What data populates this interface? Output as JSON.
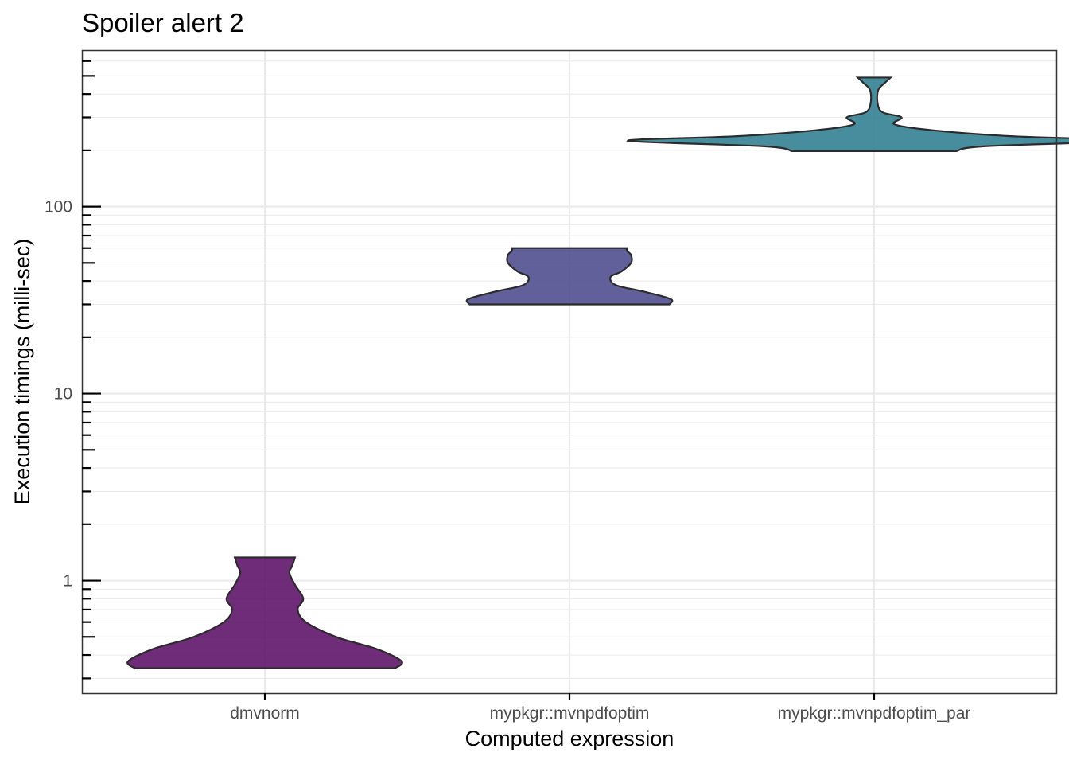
{
  "chart_data": {
    "type": "violin",
    "title": "Spoiler alert 2",
    "xlabel": "Computed expression",
    "ylabel": "Execution timings (milli-sec)",
    "y_scale": "log10",
    "ylim": [
      0.25,
      680
    ],
    "y_major_ticks": [
      1,
      10,
      100
    ],
    "y_tick_labels": [
      "1",
      "10",
      "100"
    ],
    "grid": true,
    "categories": [
      "dmvnorm",
      "mypkgr::mvnpdfoptim",
      "mypkgr::mvnpdfoptim_par"
    ],
    "series": [
      {
        "category": "dmvnorm",
        "color": "#5b0f66",
        "min": 0.34,
        "max": 1.33,
        "profile": [
          [
            0.34,
            0.95
          ],
          [
            0.37,
            1.0
          ],
          [
            0.43,
            0.82
          ],
          [
            0.5,
            0.52
          ],
          [
            0.6,
            0.3
          ],
          [
            0.7,
            0.24
          ],
          [
            0.8,
            0.28
          ],
          [
            0.95,
            0.22
          ],
          [
            1.1,
            0.18
          ],
          [
            1.2,
            0.2
          ],
          [
            1.33,
            0.22
          ]
        ]
      },
      {
        "category": "mypkgr::mvnpdfoptim",
        "color": "#4b4a8c",
        "min": 30,
        "max": 60,
        "profile": [
          [
            30,
            0.73
          ],
          [
            32,
            0.74
          ],
          [
            35,
            0.55
          ],
          [
            38,
            0.34
          ],
          [
            42,
            0.3
          ],
          [
            45,
            0.38
          ],
          [
            50,
            0.45
          ],
          [
            55,
            0.45
          ],
          [
            58,
            0.42
          ],
          [
            60,
            0.42
          ]
        ]
      },
      {
        "category": "mypkgr::mvnpdfoptim_par",
        "color": "#2e7d91",
        "min": 198,
        "max": 490,
        "profile": [
          [
            198,
            0.6
          ],
          [
            210,
            0.8
          ],
          [
            225,
            1.8
          ],
          [
            238,
            1.0
          ],
          [
            255,
            0.45
          ],
          [
            275,
            0.15
          ],
          [
            300,
            0.2
          ],
          [
            320,
            0.06
          ],
          [
            360,
            0.025
          ],
          [
            420,
            0.03
          ],
          [
            460,
            0.08
          ],
          [
            490,
            0.12
          ]
        ]
      }
    ]
  }
}
